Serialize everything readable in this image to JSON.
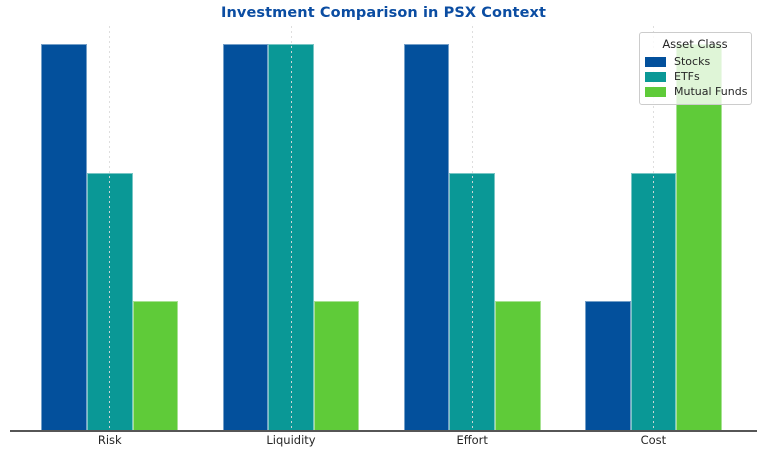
{
  "figure": {
    "background": "#ffffff"
  },
  "title": {
    "text": "Investment Comparison in PSX Context",
    "color": "#0b4da2"
  },
  "axes": {
    "tick_color": "#262626",
    "spine_color": "#565656",
    "grid_color": "#dbdbdb"
  },
  "legend": {
    "title": "Asset Class",
    "position": "upper-right",
    "items": [
      {
        "label": "Stocks",
        "color": "#03509c"
      },
      {
        "label": "ETFs",
        "color": "#0a9896"
      },
      {
        "label": "Mutual Funds",
        "color": "#5fcb39"
      }
    ]
  },
  "chart_data": {
    "type": "bar",
    "title": "Investment Comparison in PSX Context",
    "categories": [
      "Risk",
      "Liquidity",
      "Effort",
      "Cost"
    ],
    "series": [
      {
        "name": "Stocks",
        "color": "#03509c",
        "values": [
          3,
          3,
          3,
          1
        ]
      },
      {
        "name": "ETFs",
        "color": "#0a9896",
        "values": [
          2,
          3,
          2,
          2
        ]
      },
      {
        "name": "Mutual Funds",
        "color": "#5fcb39",
        "values": [
          1,
          1,
          1,
          3
        ]
      }
    ],
    "xlabel": "",
    "ylabel": "",
    "ylim": [
      0,
      3.15
    ],
    "y_axis_labels_visible": false,
    "grid": "vertical-dashed-at-categories",
    "legend_position": "upper-right"
  }
}
